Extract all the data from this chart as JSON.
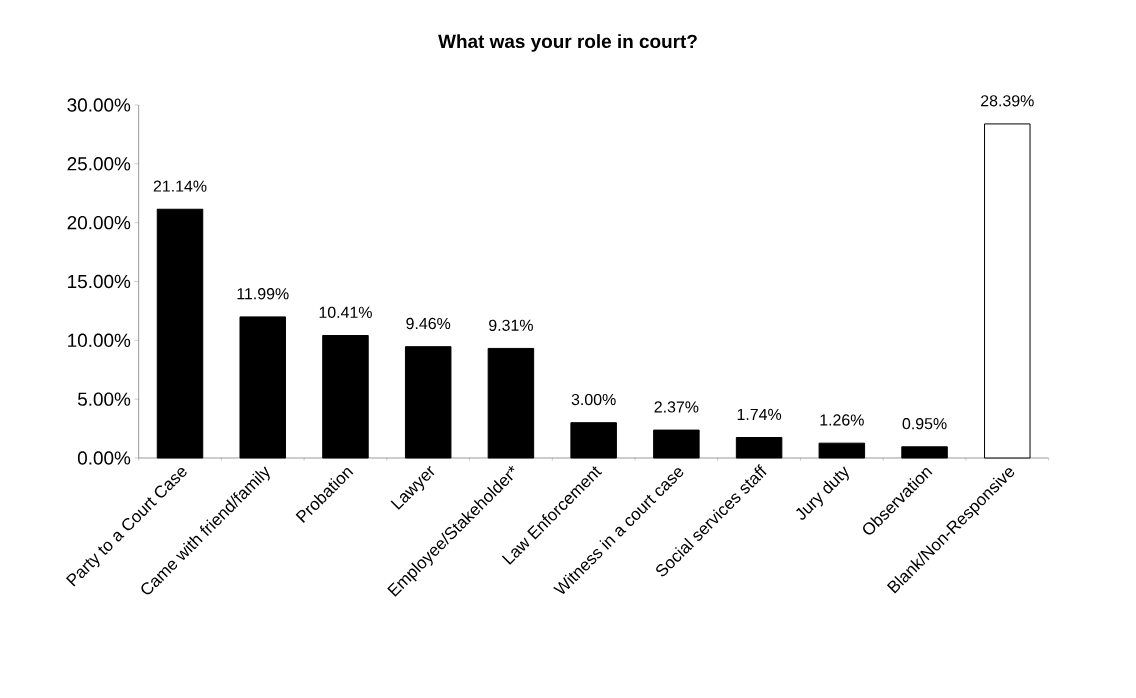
{
  "chart_data": {
    "type": "bar",
    "title": "What was your role in court?",
    "categories": [
      "Party to a Court Case",
      "Came with friend/family",
      "Probation",
      "Lawyer",
      "Employee/Stakeholder*",
      "Law Enforcement",
      "Witness in a court case",
      "Social services staff",
      "Jury duty",
      "Observation",
      "Blank/Non-Responsive"
    ],
    "values": [
      21.14,
      11.99,
      10.41,
      9.46,
      9.31,
      3.0,
      2.37,
      1.74,
      1.26,
      0.95,
      28.39
    ],
    "value_labels": [
      "21.14%",
      "11.99%",
      "10.41%",
      "9.46%",
      "9.31%",
      "3.00%",
      "2.37%",
      "1.74%",
      "1.26%",
      "0.95%",
      "28.39%"
    ],
    "colors": [
      "#000000",
      "#000000",
      "#000000",
      "#000000",
      "#000000",
      "#000000",
      "#000000",
      "#000000",
      "#000000",
      "#000000",
      "#ffffff"
    ],
    "ylim": [
      0,
      30
    ],
    "yticks": [
      {
        "value": 0,
        "label": "0.00%"
      },
      {
        "value": 5,
        "label": "5.00%"
      },
      {
        "value": 10,
        "label": "10.00%"
      },
      {
        "value": 15,
        "label": "15.00%"
      },
      {
        "value": 20,
        "label": "20.00%"
      },
      {
        "value": 25,
        "label": "25.00%"
      },
      {
        "value": 30,
        "label": "30.00%"
      }
    ],
    "grid": false
  }
}
